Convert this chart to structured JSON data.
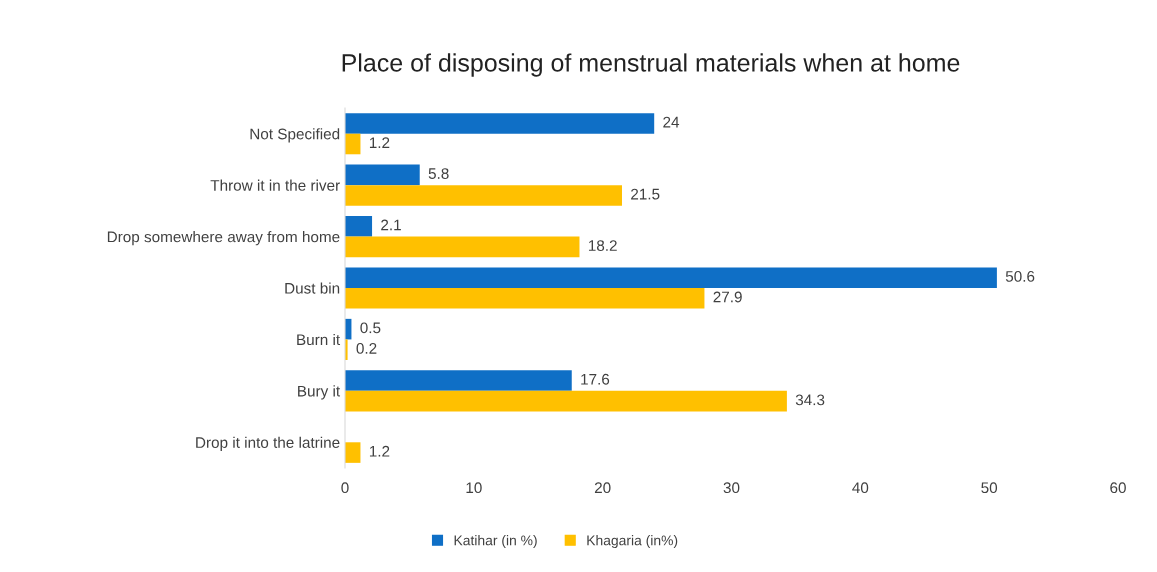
{
  "chart_data": {
    "type": "bar",
    "orientation": "horizontal",
    "title": "Place of disposing of menstrual materials when at home",
    "categories": [
      "Not Specified",
      "Throw it in the river",
      "Drop somewhere away from home",
      "Dust bin",
      "Burn it",
      "Bury it",
      "Drop it into the latrine"
    ],
    "series": [
      {
        "name": "Katihar (in %)",
        "color": "#0f6fc6",
        "values": [
          24,
          5.8,
          2.1,
          50.6,
          0.5,
          17.6,
          null
        ]
      },
      {
        "name": "Khagaria (in%)",
        "color": "#ffc000",
        "values": [
          1.2,
          21.5,
          18.2,
          27.9,
          0.2,
          34.3,
          1.2
        ]
      }
    ],
    "xlim": [
      0,
      60
    ],
    "xticks": [
      0,
      10,
      20,
      30,
      40,
      50,
      60
    ],
    "data_labels": true,
    "grid": false,
    "legend": "bottom"
  }
}
